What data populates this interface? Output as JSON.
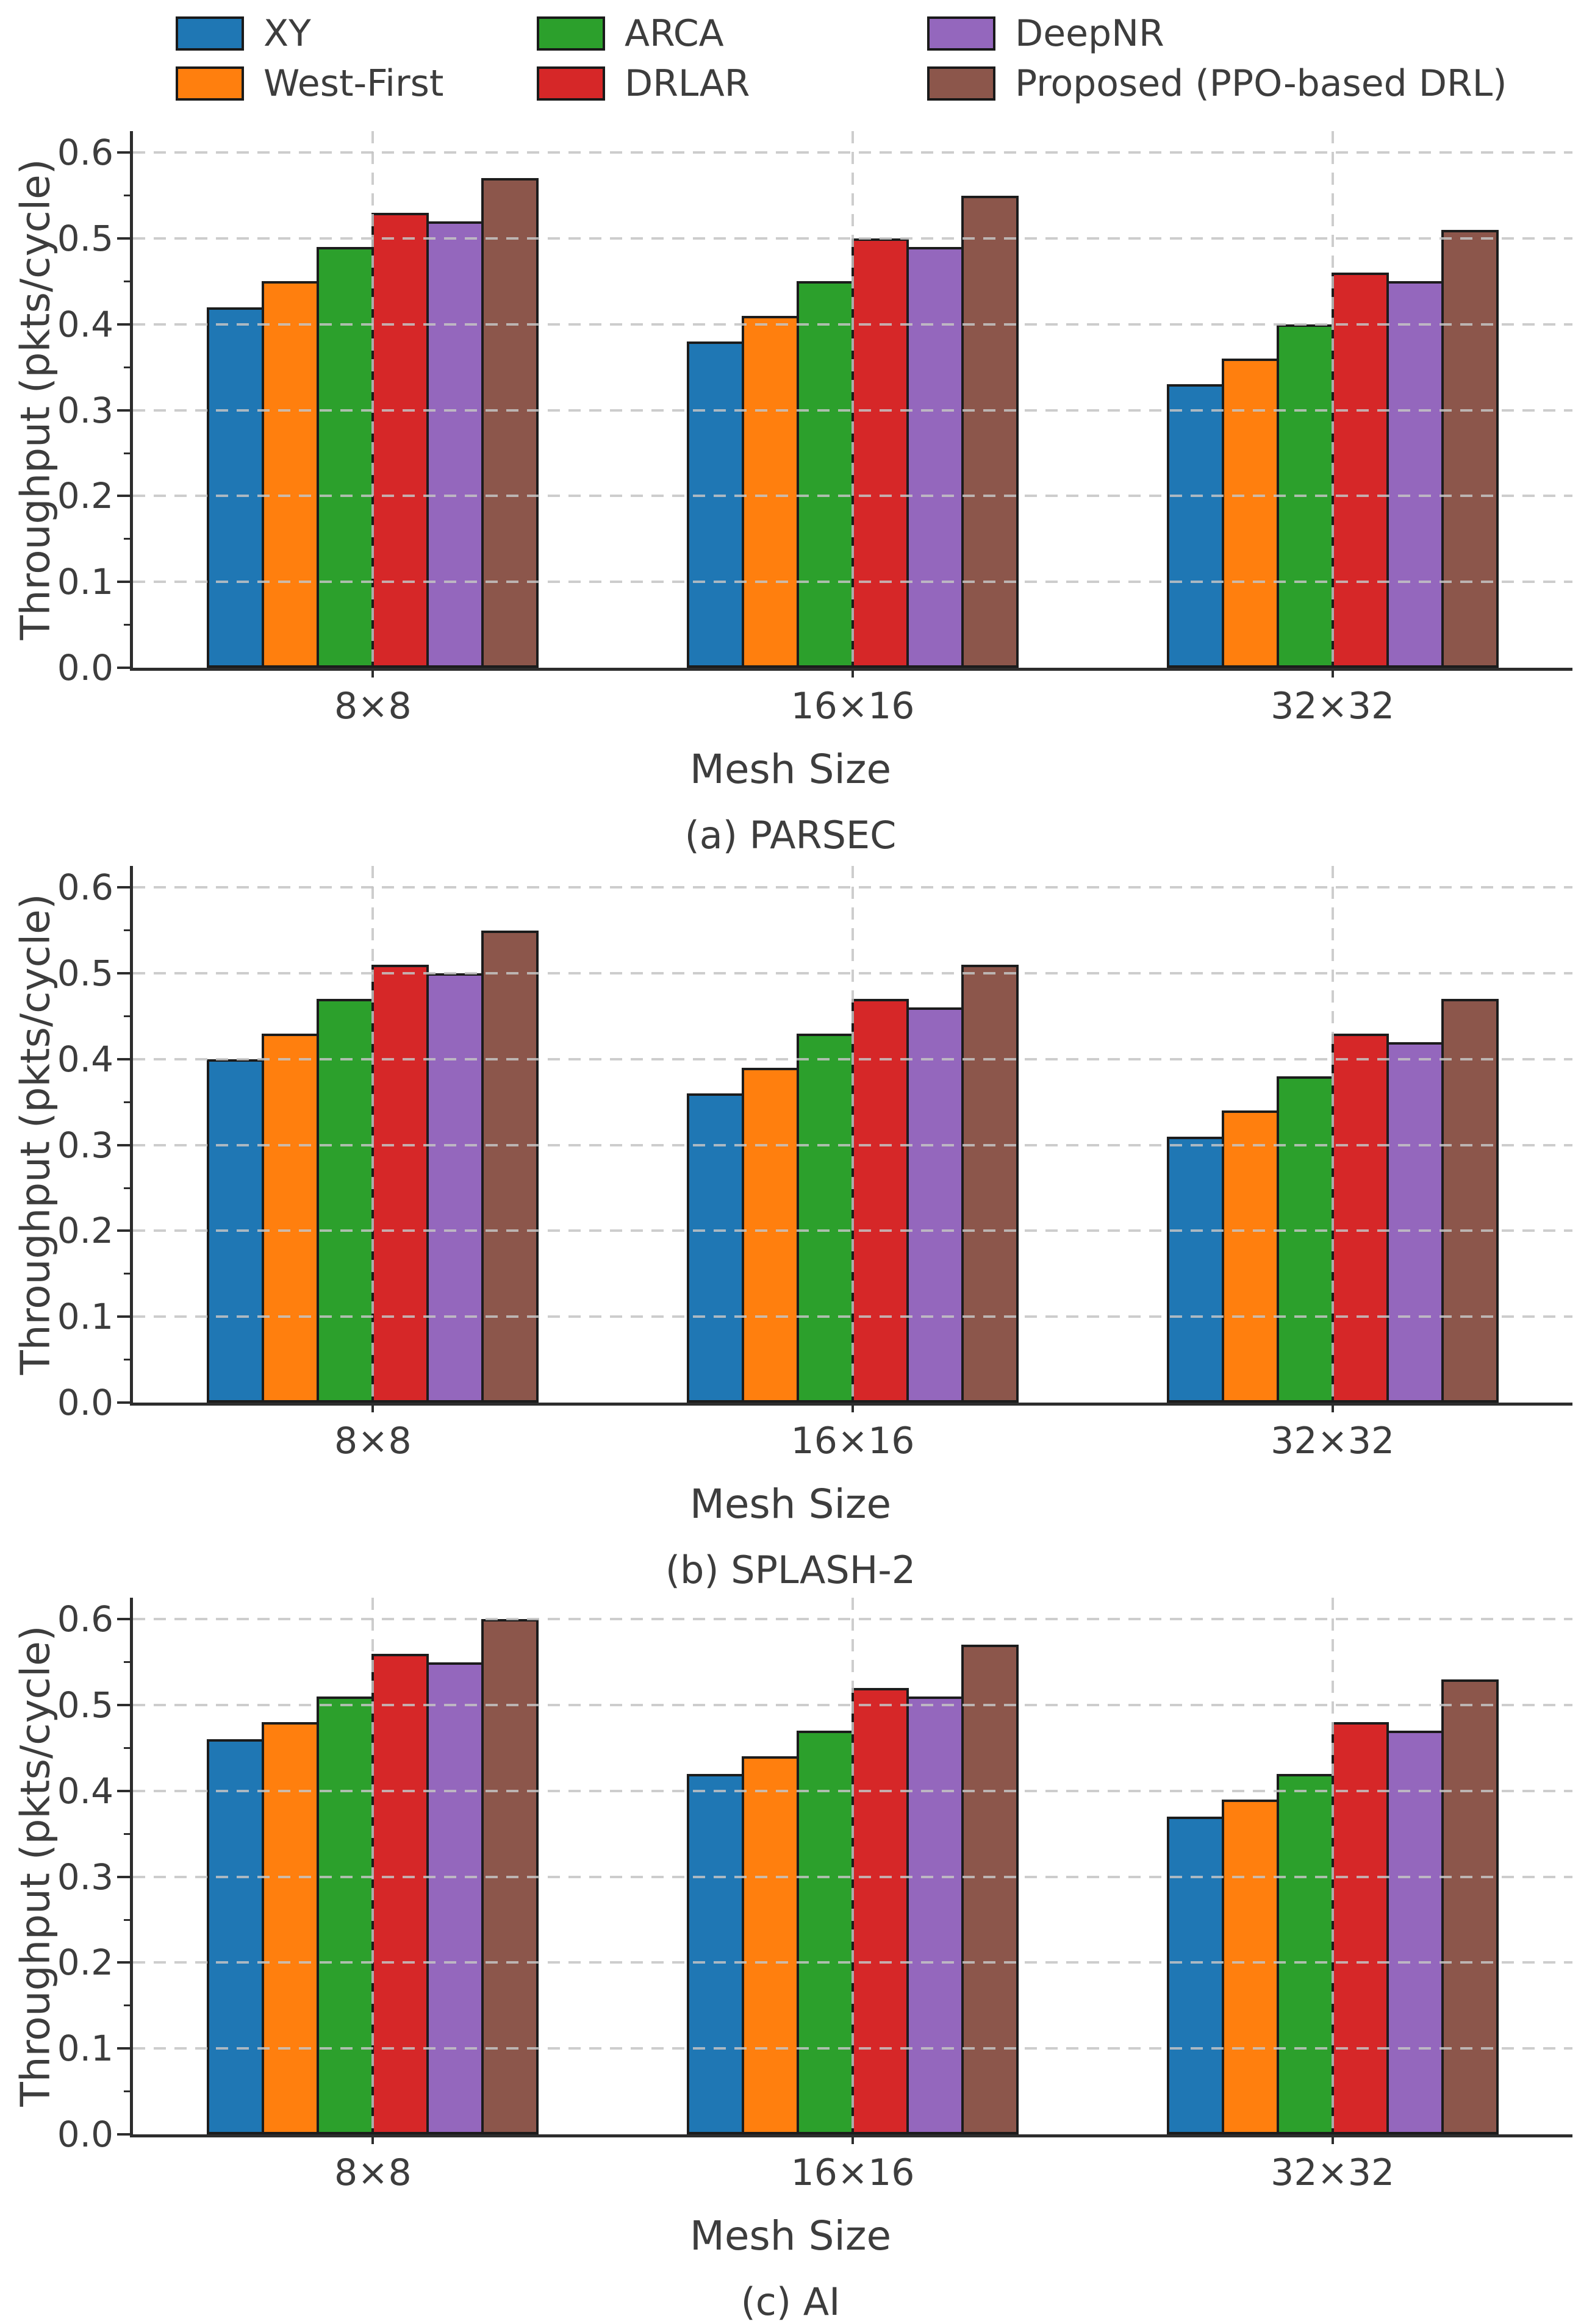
{
  "figure": {
    "ylabel": "Throughput (pkts/cycle)",
    "xlabel": "Mesh Size",
    "ytick_labels": [
      "0.0",
      "0.1",
      "0.2",
      "0.3",
      "0.4",
      "0.5",
      "0.6"
    ],
    "colors": {
      "axis": "#2d2d2d",
      "grid": "#c4c4c4",
      "text": "#3d3d3d",
      "background": "#ffffff",
      "bar_edge": "#1c1c1c"
    }
  },
  "legend": {
    "items": [
      {
        "label": "XY",
        "color": "#1f77b4"
      },
      {
        "label": "West-First",
        "color": "#ff7f0e"
      },
      {
        "label": "ARCA",
        "color": "#2ca02c"
      },
      {
        "label": "DRLAR",
        "color": "#d62728"
      },
      {
        "label": "DeepNR",
        "color": "#9467bd"
      },
      {
        "label": "Proposed (PPO-based DRL)",
        "color": "#8c564b"
      }
    ]
  },
  "chart_data": [
    {
      "type": "bar",
      "caption": "(a) PARSEC",
      "xlabel": "Mesh Size",
      "ylabel": "Throughput (pkts/cycle)",
      "categories": [
        "8×8",
        "16×16",
        "32×32"
      ],
      "ylim": [
        0,
        0.625
      ],
      "yticks": [
        0.0,
        0.1,
        0.2,
        0.3,
        0.4,
        0.5,
        0.6
      ],
      "grid": "dashed, drawn over bars; vertical dashed line at each category center",
      "legend_position": "above figure, 2 rows x 3 columns",
      "series": [
        {
          "name": "XY",
          "color": "#1f77b4",
          "values": [
            0.42,
            0.38,
            0.33
          ]
        },
        {
          "name": "West-First",
          "color": "#ff7f0e",
          "values": [
            0.45,
            0.41,
            0.36
          ]
        },
        {
          "name": "ARCA",
          "color": "#2ca02c",
          "values": [
            0.49,
            0.45,
            0.4
          ]
        },
        {
          "name": "DRLAR",
          "color": "#d62728",
          "values": [
            0.53,
            0.5,
            0.46
          ]
        },
        {
          "name": "DeepNR",
          "color": "#9467bd",
          "values": [
            0.52,
            0.49,
            0.45
          ]
        },
        {
          "name": "Proposed (PPO-based DRL)",
          "color": "#8c564b",
          "values": [
            0.57,
            0.55,
            0.51
          ]
        }
      ]
    },
    {
      "type": "bar",
      "caption": "(b) SPLASH-2",
      "xlabel": "Mesh Size",
      "ylabel": "Throughput (pkts/cycle)",
      "categories": [
        "8×8",
        "16×16",
        "32×32"
      ],
      "ylim": [
        0,
        0.625
      ],
      "yticks": [
        0.0,
        0.1,
        0.2,
        0.3,
        0.4,
        0.5,
        0.6
      ],
      "grid": "dashed, drawn over bars; vertical dashed line at each category center",
      "series": [
        {
          "name": "XY",
          "color": "#1f77b4",
          "values": [
            0.4,
            0.36,
            0.31
          ]
        },
        {
          "name": "West-First",
          "color": "#ff7f0e",
          "values": [
            0.43,
            0.39,
            0.34
          ]
        },
        {
          "name": "ARCA",
          "color": "#2ca02c",
          "values": [
            0.47,
            0.43,
            0.38
          ]
        },
        {
          "name": "DRLAR",
          "color": "#d62728",
          "values": [
            0.51,
            0.47,
            0.43
          ]
        },
        {
          "name": "DeepNR",
          "color": "#9467bd",
          "values": [
            0.5,
            0.46,
            0.42
          ]
        },
        {
          "name": "Proposed (PPO-based DRL)",
          "color": "#8c564b",
          "values": [
            0.55,
            0.51,
            0.47
          ]
        }
      ]
    },
    {
      "type": "bar",
      "caption": "(c) AI",
      "xlabel": "Mesh Size",
      "ylabel": "Throughput (pkts/cycle)",
      "categories": [
        "8×8",
        "16×16",
        "32×32"
      ],
      "ylim": [
        0,
        0.625
      ],
      "yticks": [
        0.0,
        0.1,
        0.2,
        0.3,
        0.4,
        0.5,
        0.6
      ],
      "grid": "dashed, drawn over bars; vertical dashed line at each category center",
      "series": [
        {
          "name": "XY",
          "color": "#1f77b4",
          "values": [
            0.46,
            0.42,
            0.37
          ]
        },
        {
          "name": "West-First",
          "color": "#ff7f0e",
          "values": [
            0.48,
            0.44,
            0.39
          ]
        },
        {
          "name": "ARCA",
          "color": "#2ca02c",
          "values": [
            0.51,
            0.47,
            0.42
          ]
        },
        {
          "name": "DRLAR",
          "color": "#d62728",
          "values": [
            0.56,
            0.52,
            0.48
          ]
        },
        {
          "name": "DeepNR",
          "color": "#9467bd",
          "values": [
            0.55,
            0.51,
            0.47
          ]
        },
        {
          "name": "Proposed (PPO-based DRL)",
          "color": "#8c564b",
          "values": [
            0.6,
            0.57,
            0.53
          ]
        }
      ]
    }
  ]
}
